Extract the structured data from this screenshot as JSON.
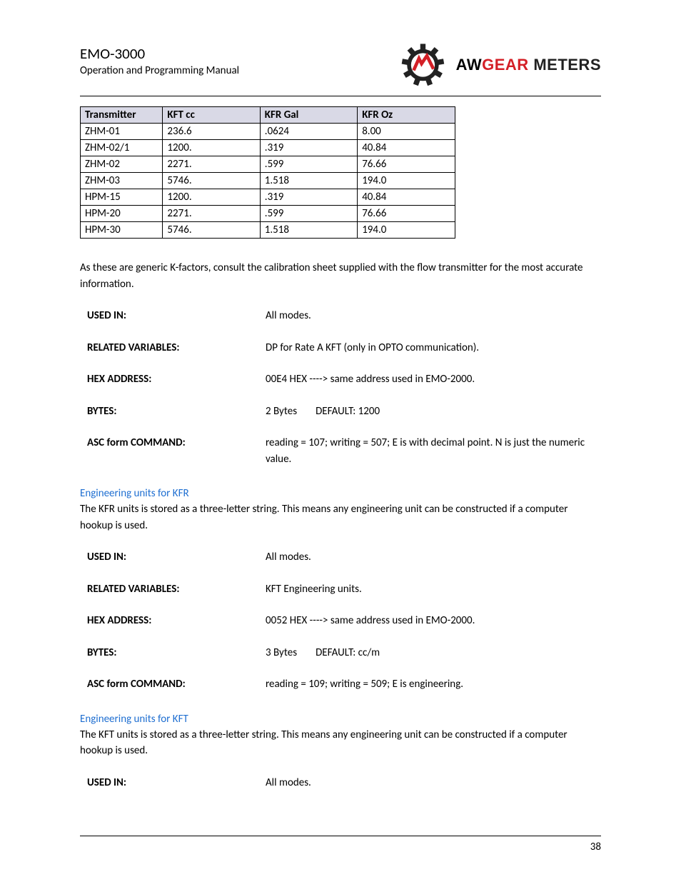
{
  "header": {
    "title": "EMO-3000",
    "subtitle": "Operation and Programming Manual",
    "logo": {
      "brand_aw": "AW",
      "brand_gear": "GEAR",
      "brand_meters": "METERS"
    }
  },
  "colors": {
    "table_header_bg": "#d9d9e6",
    "heading_link": "#1f6fd1",
    "brand_red": "#d42027",
    "rule": "#000000"
  },
  "table1": {
    "columns": [
      "Transmitter",
      "KFT cc",
      "KFR Gal",
      "KFR Oz"
    ],
    "rows": [
      [
        "ZHM-01",
        "236.6",
        ".0624",
        "8.00"
      ],
      [
        "ZHM-02/1",
        "1200.",
        ".319",
        "40.84"
      ],
      [
        "ZHM-02",
        "2271.",
        ".599",
        "76.66"
      ],
      [
        "ZHM-03",
        "5746.",
        "1.518",
        "194.0"
      ],
      [
        "HPM-15",
        "1200.",
        ".319",
        "40.84"
      ],
      [
        "HPM-20",
        "2271.",
        ".599",
        "76.66"
      ],
      [
        "HPM-30",
        "5746.",
        "1.518",
        "194.0"
      ]
    ],
    "col_widths_pct": [
      22,
      26,
      26,
      26
    ]
  },
  "para_kfactor": "As these are generic K-factors, consult the calibration sheet supplied with the flow transmitter for the most accurate information.",
  "block1": {
    "used_in_label": "USED IN:",
    "used_in_val": "All modes.",
    "related_label": "RELATED VARIABLES:",
    "related_val": "DP for Rate A KFT (only in OPTO communication).",
    "hex_label": "HEX ADDRESS:",
    "hex_val": "00E4 HEX  ---->  same address used in EMO-2000.",
    "bytes_label": "BYTES:",
    "bytes_val_a": "2 Bytes",
    "bytes_val_b": "DEFAULT: 1200",
    "asc_label": "ASC form COMMAND:",
    "asc_val": "reading = 107; writing = 507; E is with decimal point. N is just the numeric value."
  },
  "section_kfr": {
    "heading": "Engineering units for KFR",
    "para": "The KFR units is stored as a three-letter string. This means any engineering unit can be constructed if a computer hookup is used.",
    "used_in_label": "USED IN:",
    "used_in_val": "All modes.",
    "related_label": "RELATED VARIABLES:",
    "related_val": "KFT Engineering units.",
    "hex_label": "HEX ADDRESS:",
    "hex_val": "0052 HEX  ---->  same address used in EMO-2000.",
    "bytes_label": "BYTES:",
    "bytes_val_a": "3 Bytes",
    "bytes_val_b": "DEFAULT: cc/m",
    "asc_label": "ASC form COMMAND:",
    "asc_val": "reading = 109; writing = 509; E is engineering."
  },
  "section_kft": {
    "heading": "Engineering units for KFT",
    "para": "The KFT units is stored as a three-letter string. This means any engineering unit can be constructed if a computer hookup is used.",
    "used_in_label": "USED IN:",
    "used_in_val": "All modes."
  },
  "page_number": "38"
}
